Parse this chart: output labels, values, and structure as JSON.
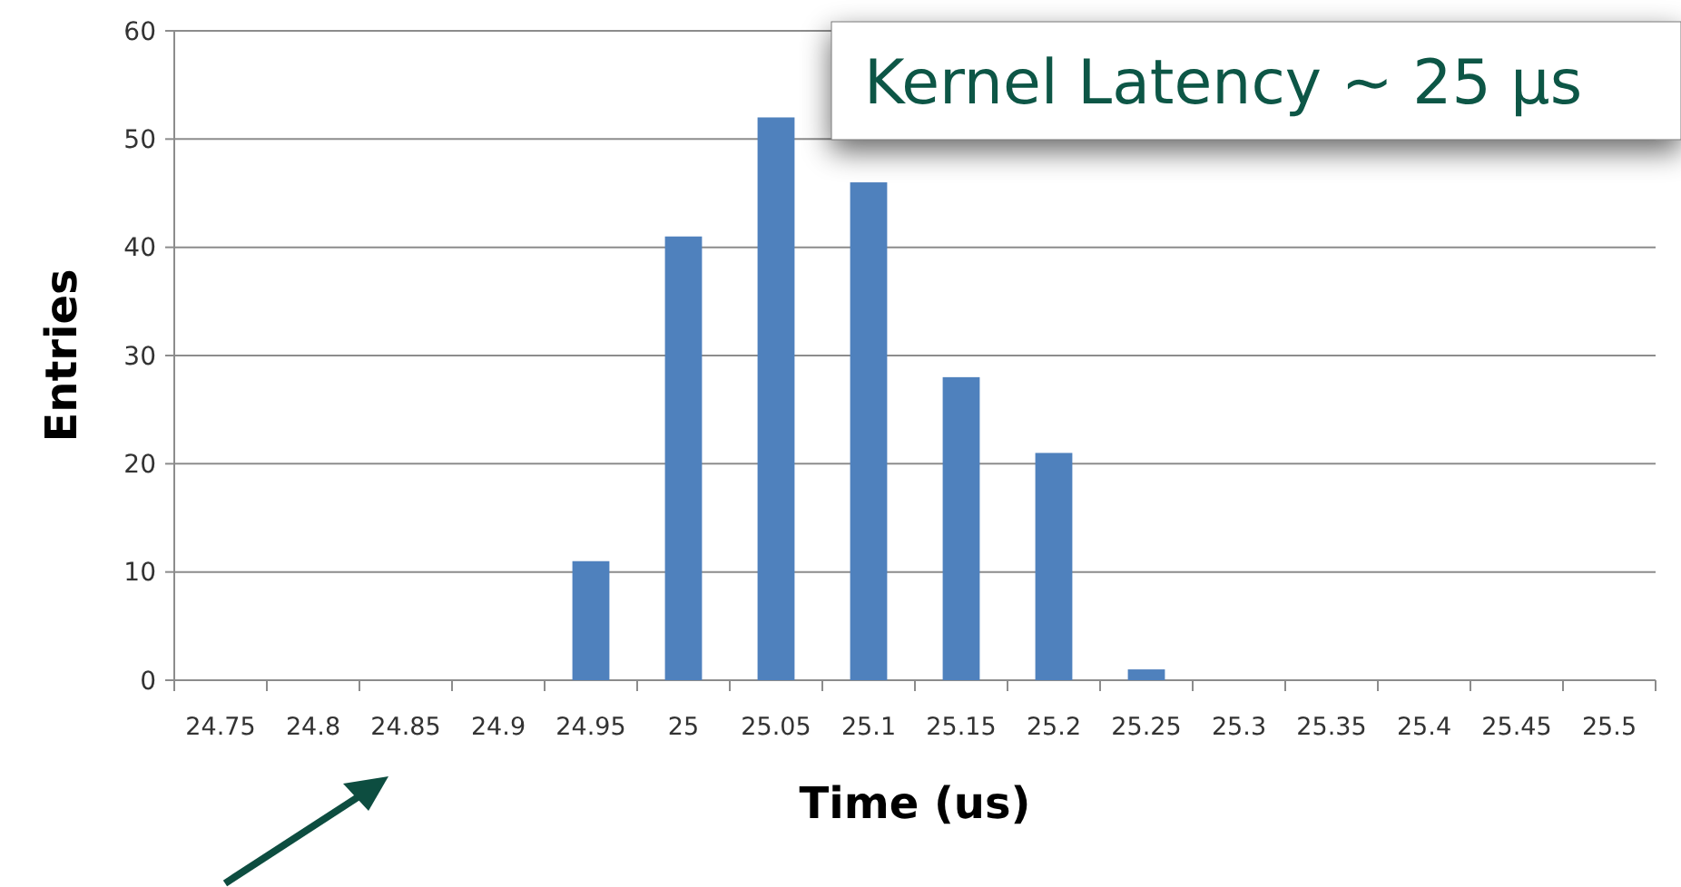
{
  "chart_data": {
    "type": "bar",
    "title": "Kernel Latency ~ 25 µs",
    "xlabel": "Time (us)",
    "ylabel": "Entries",
    "categories": [
      "24.75",
      "24.8",
      "24.85",
      "24.9",
      "24.95",
      "25",
      "25.05",
      "25.1",
      "25.15",
      "25.2",
      "25.25",
      "25.3",
      "25.35",
      "25.4",
      "25.45",
      "25.5"
    ],
    "values": [
      0,
      0,
      0,
      0,
      11,
      41,
      52,
      46,
      28,
      21,
      1,
      0,
      0,
      0,
      0,
      0
    ],
    "color": "#4f81bd",
    "ylim": [
      0,
      60
    ],
    "yticks": [
      0,
      10,
      20,
      30,
      40,
      50,
      60
    ],
    "grid": "y"
  }
}
